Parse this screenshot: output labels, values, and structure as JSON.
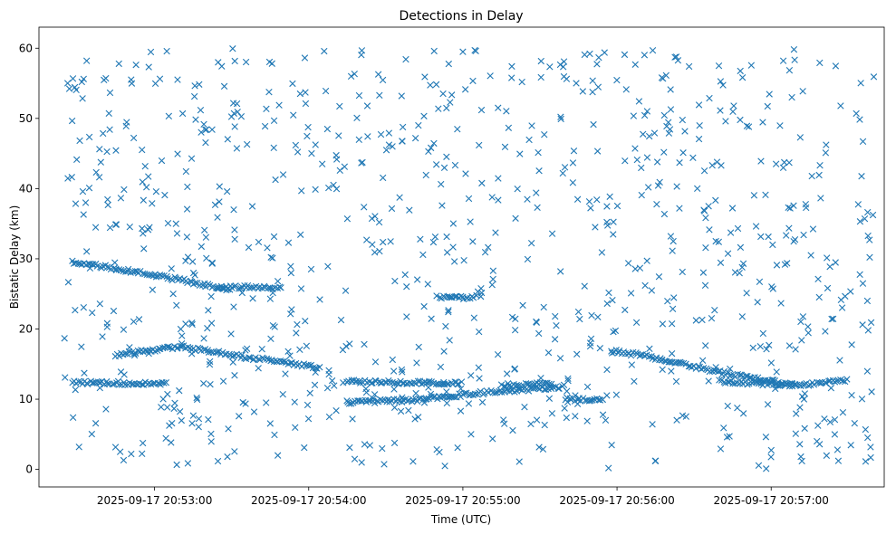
{
  "chart_data": {
    "type": "scatter",
    "title": "Detections in Delay",
    "xlabel": "Time (UTC)",
    "ylabel": "Bistatic Delay (km)",
    "marker": "x",
    "color": "#1f77b4",
    "grid": false,
    "x_range": [
      "2025-09-17 20:52:15",
      "2025-09-17 20:57:44"
    ],
    "ylim": [
      -2.5,
      63
    ],
    "x_ticks": [
      "2025-09-17 20:53:00",
      "2025-09-17 20:54:00",
      "2025-09-17 20:55:00",
      "2025-09-17 20:56:00",
      "2025-09-17 20:57:00"
    ],
    "y_ticks": [
      0,
      10,
      20,
      30,
      40,
      50,
      60
    ],
    "tracks": [
      {
        "points": [
          [
            "2025-09-17 20:52:28",
            29.6
          ],
          [
            "2025-09-17 20:52:50",
            28.3
          ],
          [
            "2025-09-17 20:53:10",
            27.0
          ],
          [
            "2025-09-17 20:53:30",
            25.5
          ]
        ]
      },
      {
        "points": [
          [
            "2025-09-17 20:53:25",
            26.0
          ],
          [
            "2025-09-17 20:53:50",
            25.9
          ]
        ]
      },
      {
        "points": [
          [
            "2025-09-17 20:52:45",
            16.3
          ],
          [
            "2025-09-17 20:53:10",
            17.5
          ],
          [
            "2025-09-17 20:53:35",
            16.0
          ],
          [
            "2025-09-17 20:54:05",
            14.5
          ]
        ]
      },
      {
        "points": [
          [
            "2025-09-17 20:52:28",
            12.4
          ],
          [
            "2025-09-17 20:53:05",
            12.2
          ]
        ]
      },
      {
        "points": [
          [
            "2025-09-17 20:54:15",
            12.5
          ],
          [
            "2025-09-17 20:55:00",
            12.3
          ]
        ]
      },
      {
        "points": [
          [
            "2025-09-17 20:54:15",
            9.6
          ],
          [
            "2025-09-17 20:54:40",
            9.8
          ],
          [
            "2025-09-17 20:55:10",
            11.0
          ],
          [
            "2025-09-17 20:55:40",
            11.8
          ]
        ]
      },
      {
        "points": [
          [
            "2025-09-17 20:55:15",
            12.0
          ],
          [
            "2025-09-17 20:55:35",
            12.2
          ]
        ]
      },
      {
        "points": [
          [
            "2025-09-17 20:55:40",
            10.0
          ],
          [
            "2025-09-17 20:55:55",
            9.8
          ]
        ]
      },
      {
        "points": [
          [
            "2025-09-17 20:55:58",
            17.0
          ],
          [
            "2025-09-17 20:56:20",
            15.5
          ],
          [
            "2025-09-17 20:56:40",
            13.8
          ],
          [
            "2025-09-17 20:57:10",
            12.0
          ]
        ]
      },
      {
        "points": [
          [
            "2025-09-17 20:56:40",
            12.5
          ],
          [
            "2025-09-17 20:57:10",
            12.0
          ],
          [
            "2025-09-17 20:57:30",
            12.8
          ]
        ]
      },
      {
        "points": [
          [
            "2025-09-17 20:54:50",
            24.5
          ],
          [
            "2025-09-17 20:55:05",
            24.4
          ]
        ]
      }
    ]
  }
}
